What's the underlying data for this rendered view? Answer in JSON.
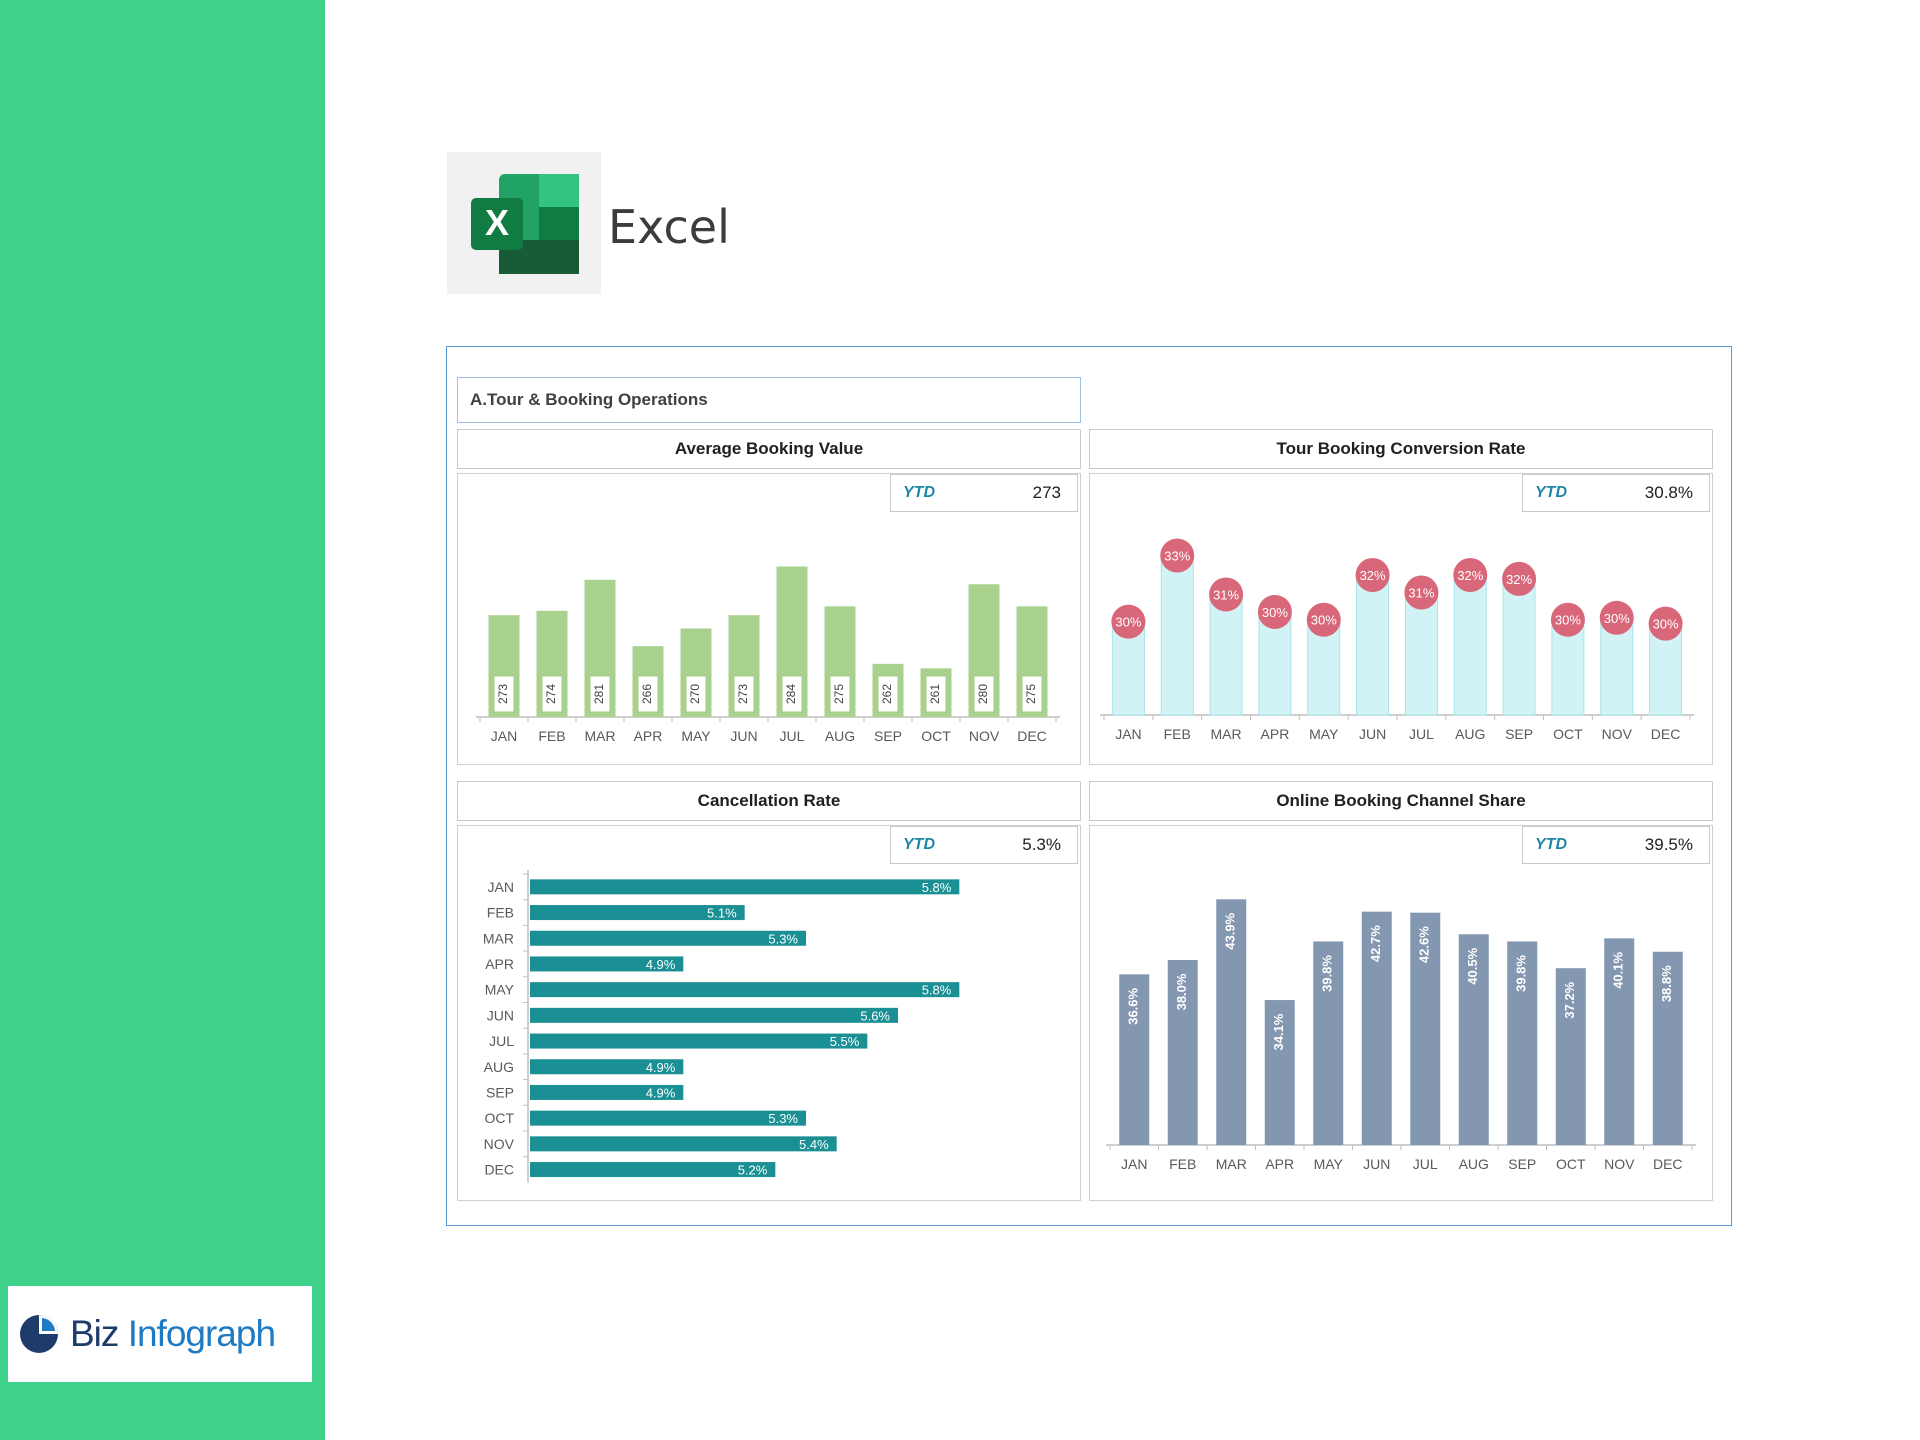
{
  "app": {
    "name": "Excel"
  },
  "brand": {
    "biz": "Biz",
    "infograph": "Infograph"
  },
  "dashboard": {
    "section_title": "A.Tour & Booking Operations",
    "ytd_label": "YTD"
  },
  "colors": {
    "sidebar": "#3dd18a",
    "avg_bar": "#a9d18e",
    "conv_bar": "#d2f3f5",
    "conv_bubble": "#d9677a",
    "cancel_bar": "#1a8f94",
    "online_bar": "#8497b0"
  },
  "chart_data": [
    {
      "id": "avg_booking_value",
      "type": "bar",
      "title": "Average Booking Value",
      "ytd": "273",
      "categories": [
        "JAN",
        "FEB",
        "MAR",
        "APR",
        "MAY",
        "JUN",
        "JUL",
        "AUG",
        "SEP",
        "OCT",
        "NOV",
        "DEC"
      ],
      "values": [
        273,
        274,
        281,
        266,
        270,
        273,
        284,
        275,
        262,
        261,
        280,
        275
      ],
      "ylim": [
        250,
        290
      ]
    },
    {
      "id": "tour_booking_conversion",
      "type": "bar",
      "title": "Tour Booking Conversion Rate",
      "ytd": "30.8%",
      "categories": [
        "JAN",
        "FEB",
        "MAR",
        "APR",
        "MAY",
        "JUN",
        "JUL",
        "AUG",
        "SEP",
        "OCT",
        "NOV",
        "DEC"
      ],
      "values": [
        29.8,
        33.2,
        31.2,
        30.3,
        29.9,
        32.2,
        31.3,
        32.2,
        32.0,
        29.9,
        30.0,
        29.7
      ],
      "labels": [
        "30%",
        "33%",
        "31%",
        "30%",
        "30%",
        "32%",
        "31%",
        "32%",
        "32%",
        "30%",
        "30%",
        "30%"
      ],
      "ylim": [
        25,
        34
      ]
    },
    {
      "id": "cancellation_rate",
      "type": "bar",
      "orientation": "horizontal",
      "title": "Cancellation Rate",
      "ytd": "5.3%",
      "categories": [
        "JAN",
        "FEB",
        "MAR",
        "APR",
        "MAY",
        "JUN",
        "JUL",
        "AUG",
        "SEP",
        "OCT",
        "NOV",
        "DEC"
      ],
      "values": [
        5.8,
        5.1,
        5.3,
        4.9,
        5.8,
        5.6,
        5.5,
        4.9,
        4.9,
        5.3,
        5.4,
        5.2
      ],
      "labels": [
        "5.8%",
        "5.1%",
        "5.3%",
        "4.9%",
        "5.8%",
        "5.6%",
        "5.5%",
        "4.9%",
        "4.9%",
        "5.3%",
        "5.4%",
        "5.2%"
      ],
      "xlim": [
        4.4,
        5.9
      ]
    },
    {
      "id": "online_booking_share",
      "type": "bar",
      "title": "Online Booking Channel Share",
      "ytd": "39.5%",
      "categories": [
        "JAN",
        "FEB",
        "MAR",
        "APR",
        "MAY",
        "JUN",
        "JUL",
        "AUG",
        "SEP",
        "OCT",
        "NOV",
        "DEC"
      ],
      "values": [
        36.6,
        38.0,
        43.9,
        34.1,
        39.8,
        42.7,
        42.6,
        40.5,
        39.8,
        37.2,
        40.1,
        38.8
      ],
      "labels": [
        "36.6%",
        "38.0%",
        "43.9%",
        "34.1%",
        "39.8%",
        "42.7%",
        "42.6%",
        "40.5%",
        "39.8%",
        "37.2%",
        "40.1%",
        "38.8%"
      ],
      "ylim": [
        20,
        45
      ]
    }
  ]
}
